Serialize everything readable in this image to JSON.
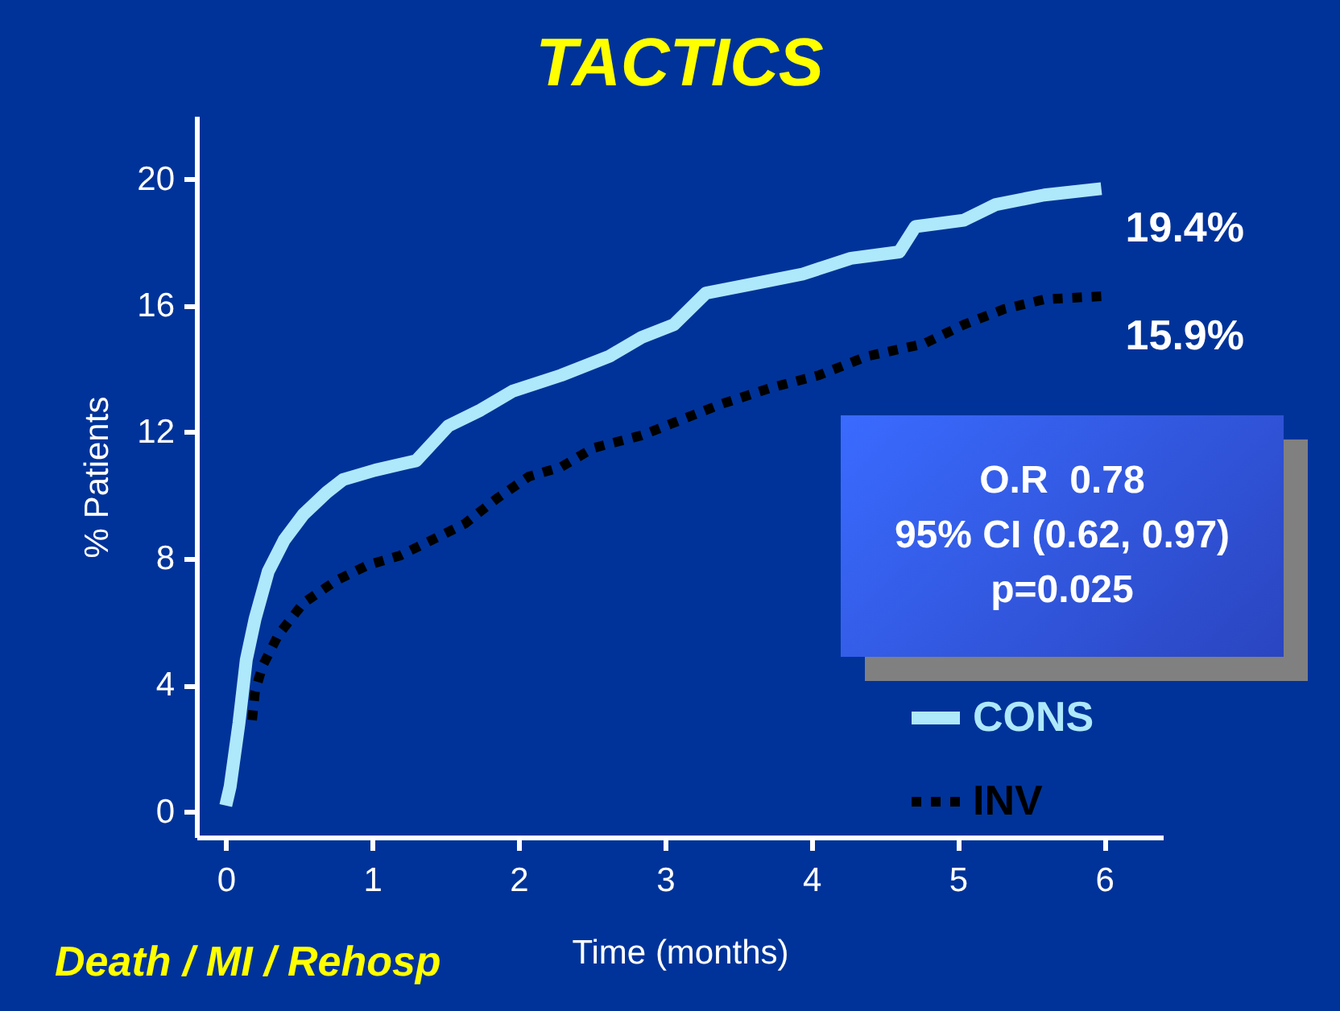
{
  "chart_data": {
    "type": "line",
    "title": "TACTICS",
    "xlabel": "Time (months)",
    "ylabel": "% Patients",
    "xlim": [
      -0.2,
      6.4
    ],
    "xticks": [
      0,
      1,
      2,
      3,
      4,
      5,
      6
    ],
    "ylim": [
      -0.8,
      22
    ],
    "yticks": [
      0,
      4,
      8,
      12,
      16,
      20
    ],
    "grid": false,
    "legend": "bottom right",
    "series": [
      {
        "name": "CONS",
        "color": "#aee8fb",
        "line_style": "solid",
        "x": [
          0,
          0.03,
          0.09,
          0.14,
          0.2,
          0.29,
          0.4,
          0.53,
          0.69,
          0.8,
          1.02,
          1.3,
          1.52,
          1.74,
          1.96,
          2.29,
          2.62,
          2.84,
          3.06,
          3.28,
          3.61,
          3.94,
          4.27,
          4.6,
          4.71,
          5.04,
          5.26,
          5.59,
          5.98
        ],
        "values": [
          0.2,
          0.8,
          2.8,
          4.8,
          6.1,
          7.6,
          8.6,
          9.4,
          10.1,
          10.5,
          10.8,
          11.1,
          12.2,
          12.7,
          13.3,
          13.8,
          14.4,
          15.0,
          15.4,
          16.4,
          16.7,
          17.0,
          17.5,
          17.7,
          18.5,
          18.7,
          19.2,
          19.5,
          19.7
        ]
      },
      {
        "name": "INV",
        "color": "#000000",
        "line_style": "dotted",
        "x": [
          0.18,
          0.2,
          0.25,
          0.36,
          0.53,
          0.75,
          0.97,
          1.19,
          1.41,
          1.63,
          1.85,
          2.07,
          2.29,
          2.51,
          2.84,
          3.06,
          3.39,
          3.72,
          4.05,
          4.38,
          4.77,
          5.04,
          5.32,
          5.59,
          5.98
        ],
        "values": [
          2.9,
          3.8,
          4.6,
          5.6,
          6.6,
          7.3,
          7.8,
          8.1,
          8.6,
          9.1,
          9.9,
          10.6,
          10.9,
          11.5,
          11.9,
          12.3,
          12.9,
          13.4,
          13.8,
          14.4,
          14.8,
          15.4,
          15.9,
          16.2,
          16.3
        ]
      }
    ],
    "annotations": [
      {
        "text": "19.4%",
        "x": 6,
        "y": 19.7
      },
      {
        "text": "15.9%",
        "x": 6,
        "y": 16.3
      },
      "O.R  0.78",
      "95% CI (0.62, 0.97)",
      "p=0.025",
      "Death / MI / Rehosp"
    ]
  }
}
